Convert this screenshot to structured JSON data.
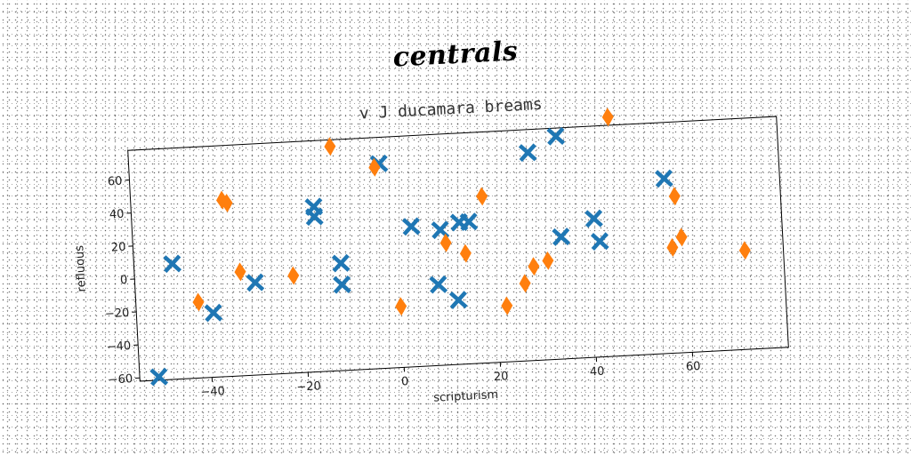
{
  "suptitle": "centrals",
  "chart_data": {
    "type": "scatter",
    "title": "v J ducamara breams",
    "xlabel": "scripturism",
    "ylabel": "refluous",
    "xlim": [
      -55,
      80
    ],
    "ylim": [
      -62,
      78
    ],
    "xticks": [
      -40,
      -20,
      0,
      20,
      40,
      60
    ],
    "yticks": [
      -60,
      -40,
      -20,
      0,
      20,
      40,
      60
    ],
    "grid": false,
    "series": [
      {
        "marker": "X",
        "color": "#1f77b4",
        "points": [
          [
            -47,
            8
          ],
          [
            -39,
            -23
          ],
          [
            -51,
            -60
          ],
          [
            -30,
            -6
          ],
          [
            -17,
            32
          ],
          [
            -17,
            38
          ],
          [
            -12,
            3
          ],
          [
            -12,
            -10
          ],
          [
            -3,
            62
          ],
          [
            3,
            23
          ],
          [
            8,
            -13
          ],
          [
            9,
            20
          ],
          [
            12,
            -23
          ],
          [
            13,
            24
          ],
          [
            15,
            24
          ],
          [
            28,
            64
          ],
          [
            34,
            73
          ],
          [
            34,
            12
          ],
          [
            41,
            22
          ],
          [
            42,
            8
          ],
          [
            56,
            44
          ]
        ]
      },
      {
        "marker": "d",
        "color": "#ff7f0e",
        "points": [
          [
            -42,
            -16
          ],
          [
            -36,
            45
          ],
          [
            -35,
            43
          ],
          [
            -33,
            1
          ],
          [
            -22,
            -3
          ],
          [
            -13,
            74
          ],
          [
            -4,
            60
          ],
          [
            0,
            -25
          ],
          [
            10,
            12
          ],
          [
            14,
            5
          ],
          [
            18,
            39
          ],
          [
            22,
            -28
          ],
          [
            26,
            -15
          ],
          [
            28,
            -5
          ],
          [
            31,
            -2
          ],
          [
            45,
            83
          ],
          [
            57,
            2
          ],
          [
            58,
            33
          ],
          [
            59,
            8
          ],
          [
            72,
            -2
          ]
        ]
      }
    ]
  }
}
